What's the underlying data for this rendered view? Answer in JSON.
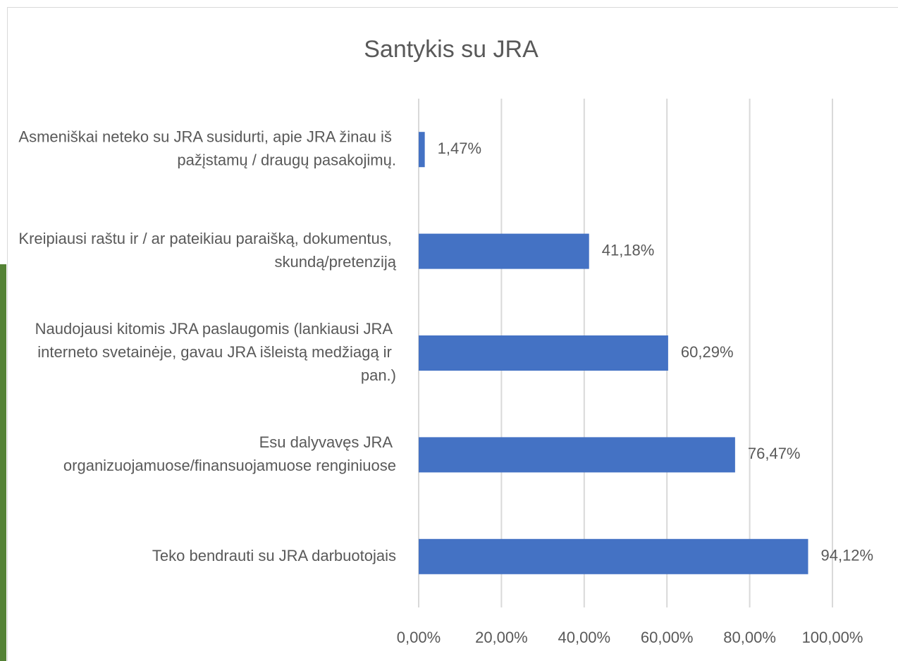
{
  "chart_data": {
    "type": "bar",
    "orientation": "horizontal",
    "title": "Santykis su JRA",
    "categories": [
      "Asmeniškai neteko su JRA susidurti, apie JRA žinau iš pažįstamų / draugų pasakojimų.",
      "Kreipiausi raštu ir / ar pateikiau paraišką, dokumentus, skundą/pretenziją",
      "Naudojausi kitomis JRA paslaugomis (lankiausi JRA interneto svetainėje, gavau JRA išleistą medžiagą ir pan.)",
      "Esu dalyvavęs JRA organizuojamuose/finansuojamuose renginiuose",
      "Teko bendrauti su JRA darbuotojais"
    ],
    "values": [
      1.47,
      41.18,
      60.29,
      76.47,
      94.12
    ],
    "value_labels": [
      "1,47%",
      "41,18%",
      "60,29%",
      "76,47%",
      "94,12%"
    ],
    "color": "#4472c4",
    "xlim": [
      0,
      100
    ],
    "xticks": [
      {
        "value": 0,
        "label": "0,00%"
      },
      {
        "value": 20,
        "label": "20,00%"
      },
      {
        "value": 40,
        "label": "40,00%"
      },
      {
        "value": 60,
        "label": "60,00%"
      },
      {
        "value": 80,
        "label": "80,00%"
      },
      {
        "value": 100,
        "label": "100,00%"
      }
    ],
    "grid": true
  }
}
